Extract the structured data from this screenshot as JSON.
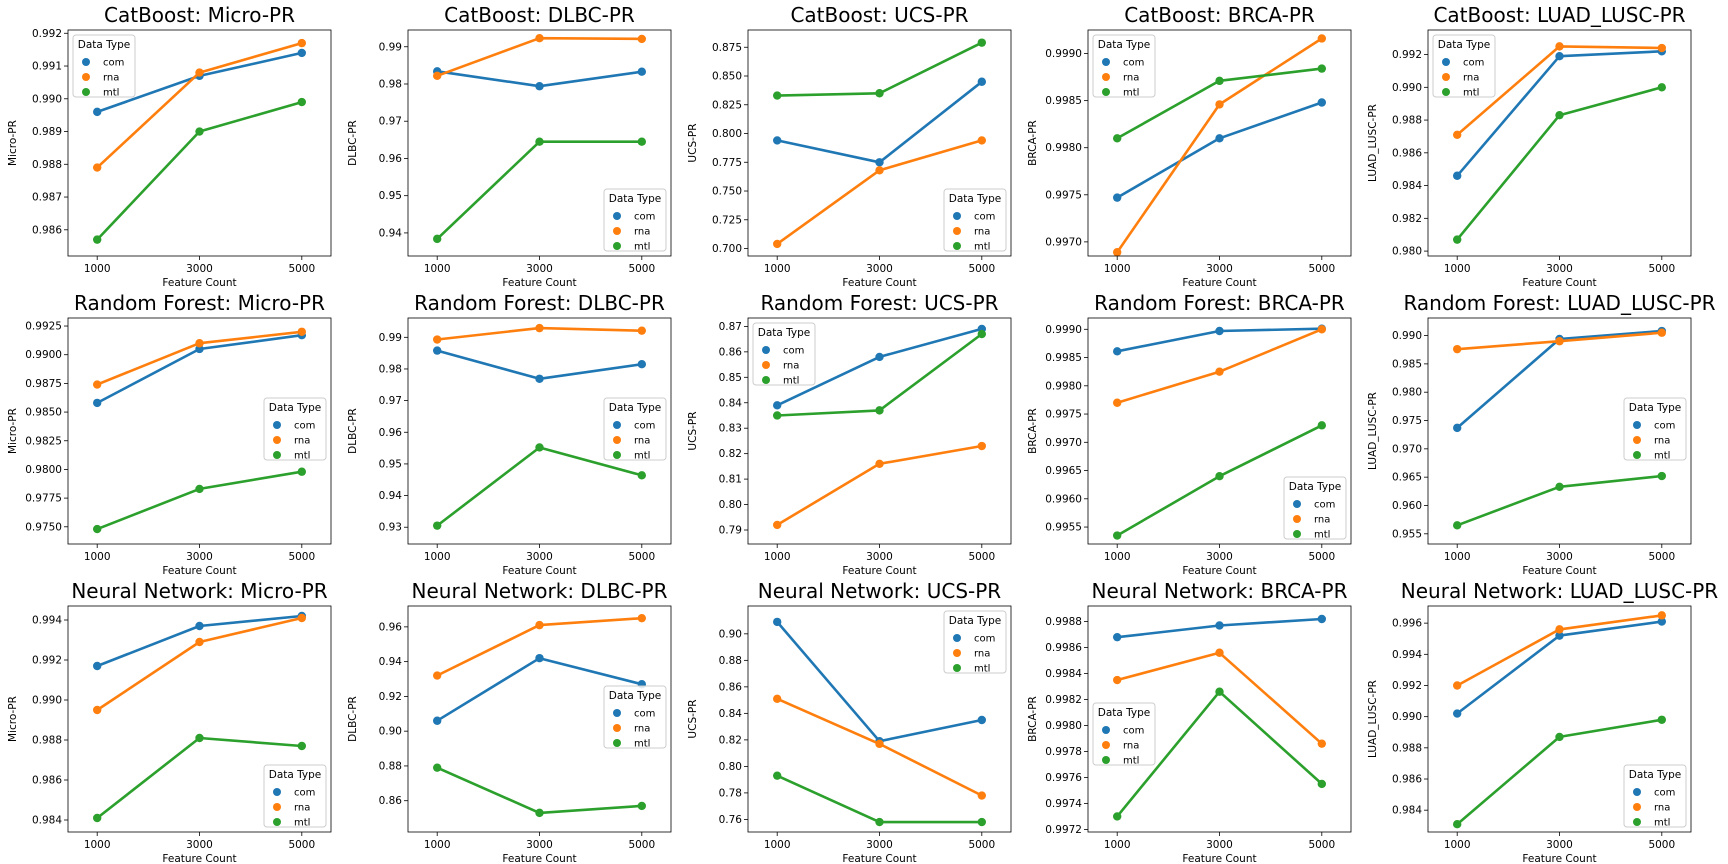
{
  "figure": {
    "xlabel": "Feature Count",
    "legend_title": "Data Type",
    "series_names": [
      "com",
      "rna",
      "mtl"
    ],
    "colors": {
      "com": "#1f77b4",
      "rna": "#ff7f0e",
      "mtl": "#2ca02c"
    }
  },
  "chart_data": [
    {
      "type": "line",
      "title": "CatBoost: Micro-PR",
      "xlabel": "Feature Count",
      "ylabel": "Micro-PR",
      "categories": [
        "1000",
        "3000",
        "5000"
      ],
      "ylim": [
        0.9852,
        0.9921
      ],
      "yticks": [
        "0.986",
        "0.987",
        "0.988",
        "0.989",
        "0.990",
        "0.991",
        "0.992"
      ],
      "legend": "top-left",
      "series": [
        {
          "name": "com",
          "values": [
            0.9896,
            0.9907,
            0.9914
          ]
        },
        {
          "name": "rna",
          "values": [
            0.9879,
            0.9908,
            0.9917
          ]
        },
        {
          "name": "mtl",
          "values": [
            0.9857,
            0.989,
            0.9899
          ]
        }
      ]
    },
    {
      "type": "line",
      "title": "CatBoost: DLBC-PR",
      "xlabel": "Feature Count",
      "ylabel": "DLBC-PR",
      "categories": [
        "1000",
        "3000",
        "5000"
      ],
      "ylim": [
        0.9338,
        0.9945
      ],
      "yticks": [
        "0.94",
        "0.95",
        "0.96",
        "0.97",
        "0.98",
        "0.99"
      ],
      "legend": "bottom-right",
      "series": [
        {
          "name": "com",
          "values": [
            0.9834,
            0.9794,
            0.9833
          ]
        },
        {
          "name": "rna",
          "values": [
            0.9822,
            0.9923,
            0.9921
          ]
        },
        {
          "name": "mtl",
          "values": [
            0.9384,
            0.9645,
            0.9645
          ]
        }
      ]
    },
    {
      "type": "line",
      "title": "CatBoost: UCS-PR",
      "xlabel": "Feature Count",
      "ylabel": "UCS-PR",
      "categories": [
        "1000",
        "3000",
        "5000"
      ],
      "ylim": [
        0.6935,
        0.89
      ],
      "yticks": [
        "0.700",
        "0.725",
        "0.750",
        "0.775",
        "0.800",
        "0.825",
        "0.850",
        "0.875"
      ],
      "legend": "bottom-right",
      "series": [
        {
          "name": "com",
          "values": [
            0.794,
            0.775,
            0.845
          ]
        },
        {
          "name": "rna",
          "values": [
            0.704,
            0.768,
            0.794
          ]
        },
        {
          "name": "mtl",
          "values": [
            0.833,
            0.835,
            0.879
          ]
        }
      ]
    },
    {
      "type": "line",
      "title": "CatBoost: BRCA-PR",
      "xlabel": "Feature Count",
      "ylabel": "BRCA-PR",
      "categories": [
        "1000",
        "3000",
        "5000"
      ],
      "ylim": [
        0.99685,
        0.99925
      ],
      "yticks": [
        "0.9970",
        "0.9975",
        "0.9980",
        "0.9985",
        "0.9990"
      ],
      "legend": "top-left",
      "series": [
        {
          "name": "com",
          "values": [
            0.99747,
            0.9981,
            0.99848
          ]
        },
        {
          "name": "rna",
          "values": [
            0.99689,
            0.99846,
            0.99916
          ]
        },
        {
          "name": "mtl",
          "values": [
            0.9981,
            0.99871,
            0.99884
          ]
        }
      ]
    },
    {
      "type": "line",
      "title": "CatBoost: LUAD_LUSC-PR",
      "xlabel": "Feature Count",
      "ylabel": "LUAD_LUSC-PR",
      "categories": [
        "1000",
        "3000",
        "5000"
      ],
      "ylim": [
        0.9797,
        0.9935
      ],
      "yticks": [
        "0.980",
        "0.982",
        "0.984",
        "0.986",
        "0.988",
        "0.990",
        "0.992"
      ],
      "legend": "top-left",
      "series": [
        {
          "name": "com",
          "values": [
            0.9846,
            0.9919,
            0.9922
          ]
        },
        {
          "name": "rna",
          "values": [
            0.9871,
            0.9925,
            0.9924
          ]
        },
        {
          "name": "mtl",
          "values": [
            0.9807,
            0.9883,
            0.99
          ]
        }
      ]
    },
    {
      "type": "line",
      "title": "Random Forest: Micro-PR",
      "xlabel": "Feature Count",
      "ylabel": "Micro-PR",
      "categories": [
        "1000",
        "3000",
        "5000"
      ],
      "ylim": [
        0.9735,
        0.9932
      ],
      "yticks": [
        "0.9750",
        "0.9775",
        "0.9800",
        "0.9825",
        "0.9850",
        "0.9875",
        "0.9900",
        "0.9925"
      ],
      "legend": "mid-right",
      "series": [
        {
          "name": "com",
          "values": [
            0.9858,
            0.9905,
            0.9917
          ]
        },
        {
          "name": "rna",
          "values": [
            0.9874,
            0.991,
            0.992
          ]
        },
        {
          "name": "mtl",
          "values": [
            0.9748,
            0.9783,
            0.9798
          ]
        }
      ]
    },
    {
      "type": "line",
      "title": "Random Forest: DLBC-PR",
      "xlabel": "Feature Count",
      "ylabel": "DLBC-PR",
      "categories": [
        "1000",
        "3000",
        "5000"
      ],
      "ylim": [
        0.9247,
        0.9961
      ],
      "yticks": [
        "0.93",
        "0.94",
        "0.95",
        "0.96",
        "0.97",
        "0.98",
        "0.99"
      ],
      "legend": "mid-right",
      "series": [
        {
          "name": "com",
          "values": [
            0.9858,
            0.9769,
            0.9815
          ]
        },
        {
          "name": "rna",
          "values": [
            0.9893,
            0.9929,
            0.9921
          ]
        },
        {
          "name": "mtl",
          "values": [
            0.9305,
            0.9552,
            0.9464
          ]
        }
      ]
    },
    {
      "type": "line",
      "title": "Random Forest: UCS-PR",
      "xlabel": "Feature Count",
      "ylabel": "UCS-PR",
      "categories": [
        "1000",
        "3000",
        "5000"
      ],
      "ylim": [
        0.7845,
        0.8733
      ],
      "yticks": [
        "0.79",
        "0.80",
        "0.81",
        "0.82",
        "0.83",
        "0.84",
        "0.85",
        "0.86",
        "0.87"
      ],
      "legend": "top-left",
      "series": [
        {
          "name": "com",
          "values": [
            0.839,
            0.858,
            0.869
          ]
        },
        {
          "name": "rna",
          "values": [
            0.792,
            0.816,
            0.823
          ]
        },
        {
          "name": "mtl",
          "values": [
            0.835,
            0.837,
            0.867
          ]
        }
      ]
    },
    {
      "type": "line",
      "title": "Random Forest: BRCA-PR",
      "xlabel": "Feature Count",
      "ylabel": "BRCA-PR",
      "categories": [
        "1000",
        "3000",
        "5000"
      ],
      "ylim": [
        0.9952,
        0.9992
      ],
      "yticks": [
        "0.9955",
        "0.9960",
        "0.9965",
        "0.9970",
        "0.9975",
        "0.9980",
        "0.9985",
        "0.9990"
      ],
      "legend": "bottom-right",
      "series": [
        {
          "name": "com",
          "values": [
            0.99861,
            0.99897,
            0.99901
          ]
        },
        {
          "name": "rna",
          "values": [
            0.9977,
            0.99825,
            0.999
          ]
        },
        {
          "name": "mtl",
          "values": [
            0.99535,
            0.9964,
            0.9973
          ]
        }
      ]
    },
    {
      "type": "line",
      "title": "Random Forest: LUAD_LUSC-PR",
      "xlabel": "Feature Count",
      "ylabel": "LUAD_LUSC-PR",
      "categories": [
        "1000",
        "3000",
        "5000"
      ],
      "ylim": [
        0.9532,
        0.9931
      ],
      "yticks": [
        "0.955",
        "0.960",
        "0.965",
        "0.970",
        "0.975",
        "0.980",
        "0.985",
        "0.990"
      ],
      "legend": "mid-right",
      "series": [
        {
          "name": "com",
          "values": [
            0.9737,
            0.9894,
            0.9908
          ]
        },
        {
          "name": "rna",
          "values": [
            0.9876,
            0.989,
            0.9905
          ]
        },
        {
          "name": "mtl",
          "values": [
            0.9565,
            0.9633,
            0.9652
          ]
        }
      ]
    },
    {
      "type": "line",
      "title": "Neural Network: Micro-PR",
      "xlabel": "Feature Count",
      "ylabel": "Micro-PR",
      "categories": [
        "1000",
        "3000",
        "5000"
      ],
      "ylim": [
        0.9834,
        0.9947
      ],
      "yticks": [
        "0.984",
        "0.986",
        "0.988",
        "0.990",
        "0.992",
        "0.994"
      ],
      "legend": "bottom-right",
      "series": [
        {
          "name": "com",
          "values": [
            0.9917,
            0.9937,
            0.9942
          ]
        },
        {
          "name": "rna",
          "values": [
            0.9895,
            0.9929,
            0.9941
          ]
        },
        {
          "name": "mtl",
          "values": [
            0.9841,
            0.9881,
            0.9877
          ]
        }
      ]
    },
    {
      "type": "line",
      "title": "Neural Network: DLBC-PR",
      "xlabel": "Feature Count",
      "ylabel": "DLBC-PR",
      "categories": [
        "1000",
        "3000",
        "5000"
      ],
      "ylim": [
        0.842,
        0.972
      ],
      "yticks": [
        "0.86",
        "0.88",
        "0.90",
        "0.92",
        "0.94",
        "0.96"
      ],
      "legend": "mid-right",
      "series": [
        {
          "name": "com",
          "values": [
            0.906,
            0.942,
            0.927
          ]
        },
        {
          "name": "rna",
          "values": [
            0.932,
            0.961,
            0.965
          ]
        },
        {
          "name": "mtl",
          "values": [
            0.879,
            0.853,
            0.857
          ]
        }
      ]
    },
    {
      "type": "line",
      "title": "Neural Network: UCS-PR",
      "xlabel": "Feature Count",
      "ylabel": "UCS-PR",
      "categories": [
        "1000",
        "3000",
        "5000"
      ],
      "ylim": [
        0.7505,
        0.921
      ],
      "yticks": [
        "0.76",
        "0.78",
        "0.80",
        "0.82",
        "0.84",
        "0.86",
        "0.88",
        "0.90"
      ],
      "legend": "top-right",
      "series": [
        {
          "name": "com",
          "values": [
            0.909,
            0.819,
            0.835
          ]
        },
        {
          "name": "rna",
          "values": [
            0.851,
            0.817,
            0.778
          ]
        },
        {
          "name": "mtl",
          "values": [
            0.793,
            0.758,
            0.758
          ]
        }
      ]
    },
    {
      "type": "line",
      "title": "Neural Network: BRCA-PR",
      "xlabel": "Feature Count",
      "ylabel": "BRCA-PR",
      "categories": [
        "1000",
        "3000",
        "5000"
      ],
      "ylim": [
        0.99718,
        0.99892
      ],
      "yticks": [
        "0.9972",
        "0.9974",
        "0.9976",
        "0.9978",
        "0.9980",
        "0.9982",
        "0.9984",
        "0.9986",
        "0.9988"
      ],
      "legend": "mid-left",
      "series": [
        {
          "name": "com",
          "values": [
            0.99868,
            0.99877,
            0.99882
          ]
        },
        {
          "name": "rna",
          "values": [
            0.99835,
            0.99856,
            0.99786
          ]
        },
        {
          "name": "mtl",
          "values": [
            0.9973,
            0.99826,
            0.99755
          ]
        }
      ]
    },
    {
      "type": "line",
      "title": "Neural Network: LUAD_LUSC-PR",
      "xlabel": "Feature Count",
      "ylabel": "LUAD_LUSC-PR",
      "categories": [
        "1000",
        "3000",
        "5000"
      ],
      "ylim": [
        0.9826,
        0.9971
      ],
      "yticks": [
        "0.984",
        "0.986",
        "0.988",
        "0.990",
        "0.992",
        "0.994",
        "0.996"
      ],
      "legend": "bottom-right",
      "series": [
        {
          "name": "com",
          "values": [
            0.9902,
            0.9952,
            0.9961
          ]
        },
        {
          "name": "rna",
          "values": [
            0.992,
            0.9956,
            0.9965
          ]
        },
        {
          "name": "mtl",
          "values": [
            0.9831,
            0.9887,
            0.9898
          ]
        }
      ]
    }
  ]
}
